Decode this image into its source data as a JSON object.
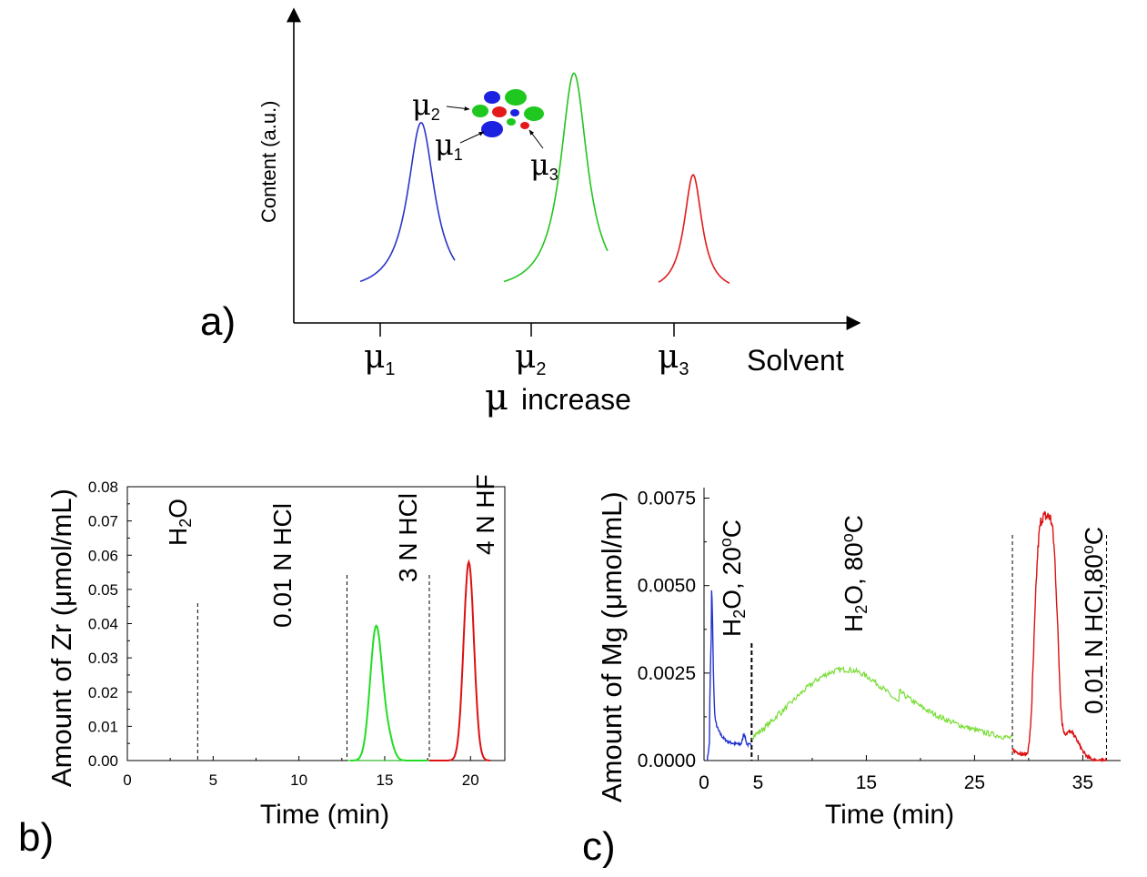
{
  "chart_data": [
    {
      "panel_label": "a)",
      "type": "line",
      "ylabel": "Content (a.u.)",
      "xlabel_right": "Solvent",
      "xlabel_bottom": {
        "symbol": "μ",
        "text": "increase"
      },
      "ticks": [
        {
          "symbol": "μ",
          "sub": "1"
        },
        {
          "symbol": "μ",
          "sub": "2"
        },
        {
          "symbol": "μ",
          "sub": "3"
        }
      ],
      "inset_labels": [
        {
          "symbol": "μ",
          "sub": "2"
        },
        {
          "symbol": "μ",
          "sub": "1"
        },
        {
          "symbol": "μ",
          "sub": "3"
        }
      ],
      "colors": {
        "mu1": "#2b35c8",
        "mu2": "#22c41e",
        "mu3": "#e01b1b"
      },
      "series": [
        {
          "name": "μ1",
          "color": "#2b35c8",
          "peak_height": 0.62
        },
        {
          "name": "μ2",
          "color": "#22c41e",
          "peak_height": 0.8
        },
        {
          "name": "μ3",
          "color": "#e01b1b",
          "peak_height": 0.43
        }
      ]
    },
    {
      "panel_label": "b)",
      "type": "line",
      "xlabel": "Time (min)",
      "ylabel": "Amount of  Zr (μmol/mL)",
      "xlim": [
        0,
        22
      ],
      "ylim": [
        0,
        0.08
      ],
      "xticks": [
        "0",
        "5",
        "10",
        "15",
        "20"
      ],
      "yticks": [
        "0.00",
        "0.01",
        "0.02",
        "0.03",
        "0.04",
        "0.05",
        "0.06",
        "0.07",
        "0.08"
      ],
      "stages": [
        "H2O",
        "0.01 N HCl",
        "3 N HCl",
        "4 N HF"
      ],
      "dividers_x": [
        4.1,
        12.8,
        17.6
      ],
      "series": [
        {
          "name": "3 N HCl",
          "color": "#22dd22",
          "peaks": [
            [
              14.5,
              0.039,
              0.35
            ],
            [
              15.2,
              0.006,
              0.3
            ]
          ]
        },
        {
          "name": "4 N HF",
          "color": "#dd1111",
          "peaks": [
            [
              19.9,
              0.058,
              0.3
            ]
          ]
        }
      ]
    },
    {
      "panel_label": "c)",
      "type": "line",
      "xlabel": "Time (min)",
      "ylabel": "Amount of  Mg (μmol/mL)",
      "xlim": [
        0,
        38.5
      ],
      "ylim": [
        0,
        0.0078
      ],
      "xticks": [
        "0",
        "5",
        "15",
        "25",
        "35"
      ],
      "yticks": [
        "0.0000",
        "0.0025",
        "0.0050",
        "0.0075"
      ],
      "stages": [
        "H2O, 20oC",
        "H2O, 80oC",
        "0.01 N HCl,80oC"
      ],
      "dividers_x": [
        4.4,
        28.5,
        37.2
      ],
      "series": [
        {
          "name": "H2O, 20oC",
          "color": "#2233cc"
        },
        {
          "name": "H2O, 80oC",
          "color": "#77dd33"
        },
        {
          "name": "0.01 N HCl,80oC",
          "color": "#dd1111"
        }
      ]
    }
  ]
}
